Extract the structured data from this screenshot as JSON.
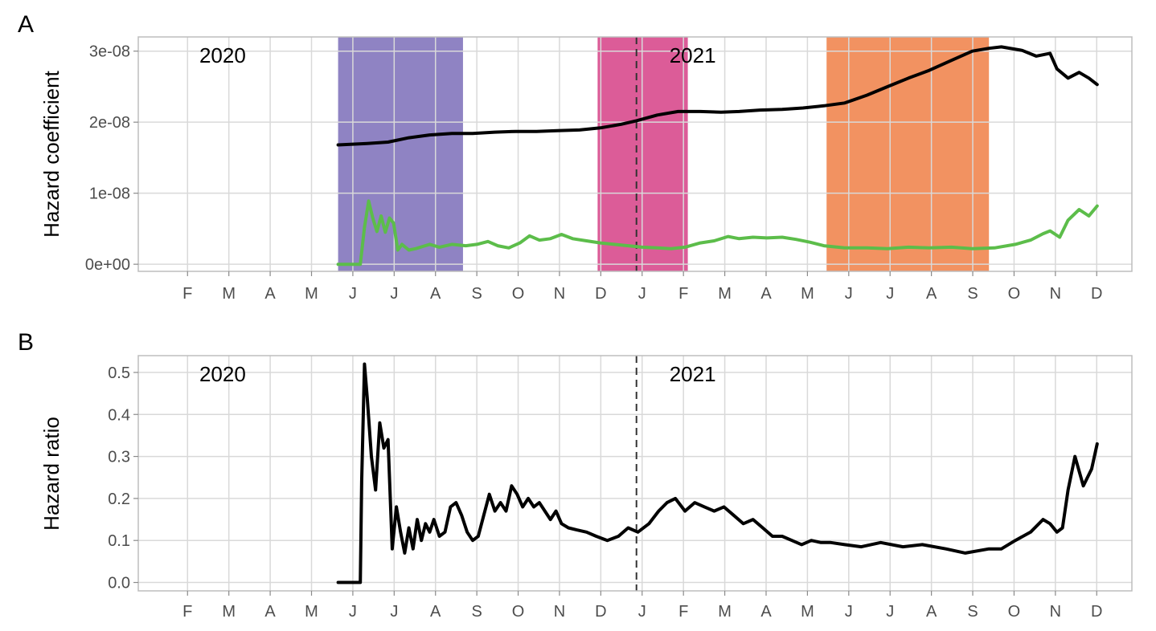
{
  "chart_data": [
    {
      "panel": "A",
      "type": "line",
      "ylabel": "Hazard coefficient",
      "ytick_labels": [
        "0e+00",
        "1e-08",
        "2e-08",
        "3e-08"
      ],
      "ytick_values": [
        0,
        1e-08,
        2e-08,
        3e-08
      ],
      "ylim": [
        -1e-09,
        3.2e-08
      ],
      "x_tick_labels": [
        "F",
        "M",
        "A",
        "M",
        "J",
        "J",
        "A",
        "S",
        "O",
        "N",
        "D",
        "J",
        "F",
        "M",
        "A",
        "M",
        "J",
        "J",
        "A",
        "S",
        "O",
        "N",
        "D"
      ],
      "year_labels": [
        {
          "text": "2020",
          "date": "2020-02-10"
        },
        {
          "text": "2021",
          "date": "2021-01-01"
        }
      ],
      "year_divider": "2020-12-21",
      "shaded_regions": [
        {
          "start": "2020-05-20",
          "end": "2020-08-18",
          "color": "#7b6db8"
        },
        {
          "start": "2020-11-23",
          "end": "2021-01-27",
          "color": "#d63f86"
        },
        {
          "start": "2021-05-07",
          "end": "2021-09-01",
          "color": "#f07f45"
        }
      ],
      "series": [
        {
          "color": "#000000",
          "x": [
            "2020-05-20",
            "2020-06-10",
            "2020-06-25",
            "2020-07-10",
            "2020-07-25",
            "2020-08-10",
            "2020-08-25",
            "2020-09-10",
            "2020-09-25",
            "2020-10-10",
            "2020-10-25",
            "2020-11-10",
            "2020-11-25",
            "2020-12-10",
            "2020-12-21",
            "2021-01-05",
            "2021-01-20",
            "2021-02-05",
            "2021-02-20",
            "2021-03-05",
            "2021-03-20",
            "2021-04-05",
            "2021-04-20",
            "2021-05-05",
            "2021-05-20",
            "2021-06-05",
            "2021-06-20",
            "2021-07-05",
            "2021-07-20",
            "2021-08-05",
            "2021-08-20",
            "2021-09-01",
            "2021-09-10",
            "2021-09-25",
            "2021-10-05",
            "2021-10-15",
            "2021-10-20",
            "2021-10-28",
            "2021-11-05",
            "2021-11-12",
            "2021-11-18"
          ],
          "y": [
            1.68e-08,
            1.7e-08,
            1.72e-08,
            1.78e-08,
            1.82e-08,
            1.84e-08,
            1.84e-08,
            1.86e-08,
            1.87e-08,
            1.87e-08,
            1.88e-08,
            1.89e-08,
            1.92e-08,
            1.97e-08,
            2.02e-08,
            2.1e-08,
            2.15e-08,
            2.15e-08,
            2.14e-08,
            2.15e-08,
            2.17e-08,
            2.18e-08,
            2.2e-08,
            2.23e-08,
            2.27e-08,
            2.38e-08,
            2.5e-08,
            2.62e-08,
            2.73e-08,
            2.87e-08,
            3e-08,
            3.04e-08,
            3.06e-08,
            3.01e-08,
            2.93e-08,
            2.97e-08,
            2.75e-08,
            2.62e-08,
            2.7e-08,
            2.62e-08,
            2.53e-08
          ]
        },
        {
          "color": "#5cbd4a",
          "x": [
            "2020-05-20",
            "2020-06-05",
            "2020-06-08",
            "2020-06-11",
            "2020-06-14",
            "2020-06-17",
            "2020-06-20",
            "2020-06-23",
            "2020-06-26",
            "2020-06-29",
            "2020-07-02",
            "2020-07-05",
            "2020-07-10",
            "2020-07-15",
            "2020-07-20",
            "2020-07-25",
            "2020-08-01",
            "2020-08-10",
            "2020-08-20",
            "2020-08-28",
            "2020-09-05",
            "2020-09-12",
            "2020-09-20",
            "2020-09-28",
            "2020-10-05",
            "2020-10-12",
            "2020-10-20",
            "2020-10-28",
            "2020-11-05",
            "2020-11-15",
            "2020-11-25",
            "2020-12-05",
            "2020-12-15",
            "2020-12-25",
            "2021-01-05",
            "2021-01-15",
            "2021-01-25",
            "2021-02-05",
            "2021-02-15",
            "2021-02-25",
            "2021-03-05",
            "2021-03-15",
            "2021-03-25",
            "2021-04-05",
            "2021-04-15",
            "2021-04-25",
            "2021-05-05",
            "2021-05-20",
            "2021-06-05",
            "2021-06-20",
            "2021-07-05",
            "2021-07-20",
            "2021-08-05",
            "2021-08-20",
            "2021-09-05",
            "2021-09-20",
            "2021-10-01",
            "2021-10-10",
            "2021-10-15",
            "2021-10-22",
            "2021-10-28",
            "2021-11-05",
            "2021-11-12",
            "2021-11-18"
          ],
          "y": [
            0.0,
            0.0,
            5.2e-09,
            8.9e-09,
            6.5e-09,
            4.6e-09,
            6.8e-09,
            4.5e-09,
            6.5e-09,
            5.8e-09,
            2e-09,
            2.8e-09,
            2e-09,
            2.2e-09,
            2.5e-09,
            2.8e-09,
            2.4e-09,
            2.8e-09,
            2.6e-09,
            2.8e-09,
            3.2e-09,
            2.6e-09,
            2.3e-09,
            3e-09,
            4e-09,
            3.4e-09,
            3.6e-09,
            4.2e-09,
            3.6e-09,
            3.3e-09,
            3e-09,
            2.8e-09,
            2.6e-09,
            2.4e-09,
            2.3e-09,
            2.2e-09,
            2.4e-09,
            3e-09,
            3.3e-09,
            3.9e-09,
            3.6e-09,
            3.8e-09,
            3.7e-09,
            3.8e-09,
            3.5e-09,
            3.1e-09,
            2.6e-09,
            2.3e-09,
            2.3e-09,
            2.2e-09,
            2.4e-09,
            2.3e-09,
            2.4e-09,
            2.2e-09,
            2.3e-09,
            2.8e-09,
            3.4e-09,
            4.3e-09,
            4.7e-09,
            3.8e-09,
            6.2e-09,
            7.7e-09,
            6.8e-09,
            8.2e-09
          ]
        }
      ]
    },
    {
      "panel": "B",
      "type": "line",
      "ylabel": "Hazard ratio",
      "ytick_labels": [
        "0.0",
        "0.1",
        "0.2",
        "0.3",
        "0.4",
        "0.5"
      ],
      "ytick_values": [
        0,
        0.1,
        0.2,
        0.3,
        0.4,
        0.5
      ],
      "ylim": [
        -0.02,
        0.54
      ],
      "x_tick_labels": [
        "F",
        "M",
        "A",
        "M",
        "J",
        "J",
        "A",
        "S",
        "O",
        "N",
        "D",
        "J",
        "F",
        "M",
        "A",
        "M",
        "J",
        "J",
        "A",
        "S",
        "O",
        "N",
        "D"
      ],
      "year_labels": [
        {
          "text": "2020",
          "date": "2020-02-10"
        },
        {
          "text": "2021",
          "date": "2021-01-01"
        }
      ],
      "year_divider": "2020-12-21",
      "series": [
        {
          "color": "#000000",
          "x": [
            "2020-05-20",
            "2020-06-05",
            "2020-06-06",
            "2020-06-08",
            "2020-06-10",
            "2020-06-13",
            "2020-06-16",
            "2020-06-19",
            "2020-06-22",
            "2020-06-25",
            "2020-06-28",
            "2020-07-01",
            "2020-07-04",
            "2020-07-07",
            "2020-07-10",
            "2020-07-13",
            "2020-07-16",
            "2020-07-19",
            "2020-07-22",
            "2020-07-25",
            "2020-07-28",
            "2020-08-01",
            "2020-08-05",
            "2020-08-09",
            "2020-08-13",
            "2020-08-17",
            "2020-08-21",
            "2020-08-25",
            "2020-08-29",
            "2020-09-02",
            "2020-09-06",
            "2020-09-10",
            "2020-09-14",
            "2020-09-18",
            "2020-09-22",
            "2020-09-26",
            "2020-09-30",
            "2020-10-04",
            "2020-10-08",
            "2020-10-12",
            "2020-10-16",
            "2020-10-20",
            "2020-10-24",
            "2020-10-28",
            "2020-11-02",
            "2020-11-08",
            "2020-11-15",
            "2020-11-22",
            "2020-11-30",
            "2020-12-08",
            "2020-12-15",
            "2020-12-22",
            "2020-12-30",
            "2021-01-06",
            "2021-01-12",
            "2021-01-18",
            "2021-01-25",
            "2021-02-01",
            "2021-02-08",
            "2021-02-15",
            "2021-02-22",
            "2021-03-01",
            "2021-03-08",
            "2021-03-15",
            "2021-03-22",
            "2021-03-29",
            "2021-04-05",
            "2021-04-12",
            "2021-04-19",
            "2021-04-26",
            "2021-05-03",
            "2021-05-10",
            "2021-05-20",
            "2021-06-01",
            "2021-06-15",
            "2021-07-01",
            "2021-07-15",
            "2021-08-01",
            "2021-08-15",
            "2021-09-01",
            "2021-09-10",
            "2021-09-20",
            "2021-10-01",
            "2021-10-10",
            "2021-10-15",
            "2021-10-20",
            "2021-10-24",
            "2021-10-28",
            "2021-11-02",
            "2021-11-08",
            "2021-11-14",
            "2021-11-18"
          ],
          "y": [
            0.0,
            0.0,
            0.24,
            0.52,
            0.44,
            0.3,
            0.22,
            0.38,
            0.32,
            0.34,
            0.08,
            0.18,
            0.12,
            0.07,
            0.13,
            0.08,
            0.15,
            0.1,
            0.14,
            0.12,
            0.15,
            0.11,
            0.12,
            0.18,
            0.19,
            0.16,
            0.12,
            0.1,
            0.11,
            0.16,
            0.21,
            0.17,
            0.19,
            0.17,
            0.23,
            0.21,
            0.18,
            0.2,
            0.18,
            0.19,
            0.17,
            0.15,
            0.17,
            0.14,
            0.13,
            0.125,
            0.12,
            0.11,
            0.1,
            0.11,
            0.13,
            0.12,
            0.14,
            0.17,
            0.19,
            0.2,
            0.17,
            0.19,
            0.18,
            0.17,
            0.18,
            0.16,
            0.14,
            0.15,
            0.13,
            0.11,
            0.11,
            0.1,
            0.09,
            0.1,
            0.095,
            0.095,
            0.09,
            0.085,
            0.095,
            0.085,
            0.09,
            0.08,
            0.07,
            0.08,
            0.08,
            0.1,
            0.12,
            0.15,
            0.14,
            0.12,
            0.13,
            0.22,
            0.3,
            0.23,
            0.27,
            0.33
          ]
        }
      ]
    }
  ]
}
